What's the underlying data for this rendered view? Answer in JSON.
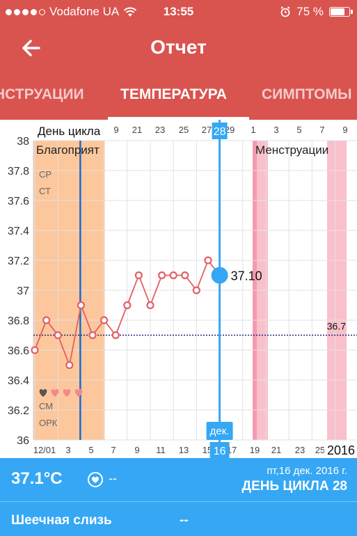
{
  "status_bar": {
    "carrier": "Vodafone UA",
    "time": "13:55",
    "battery": "75 %",
    "battery_level": 0.75
  },
  "header": {
    "title": "Отчет",
    "back_icon": "arrow-left-icon"
  },
  "tabs": [
    {
      "label": "НСТРУАЦИИ",
      "active": false
    },
    {
      "label": "ТЕМПЕРАТУРА",
      "active": true
    },
    {
      "label": "СИМПТОМЫ",
      "active": false
    }
  ],
  "chart_data": {
    "type": "line",
    "title": "",
    "x_axis_top_label": "День цикла",
    "top_ticks": [
      "9",
      "21",
      "23",
      "25",
      "27",
      "28",
      "29",
      "1",
      "3",
      "5",
      "7",
      "9"
    ],
    "selected_cycle_day": "28",
    "bottom_ticks": [
      "12/01",
      "3",
      "5",
      "7",
      "9",
      "11",
      "13",
      "15",
      "16",
      "17",
      "19",
      "21",
      "23",
      "25"
    ],
    "selected_date_badge": {
      "month": "дек.",
      "day": "16"
    },
    "year_label": "2016",
    "y_ticks": [
      "38",
      "37.8",
      "37.6",
      "37.4",
      "37.2",
      "37",
      "36.8",
      "36.6",
      "36.4",
      "36.2",
      "36"
    ],
    "ylim": [
      36,
      38
    ],
    "x": [
      "1",
      "2",
      "3",
      "4",
      "5",
      "6",
      "7",
      "8",
      "9",
      "10",
      "11",
      "12",
      "13",
      "14",
      "15",
      "16"
    ],
    "series": [
      {
        "values": [
          36.6,
          36.8,
          36.7,
          36.5,
          36.9,
          36.7,
          36.8,
          36.7,
          36.9,
          37.1,
          36.9,
          37.1,
          37.1,
          37.1,
          37.0,
          37.2
        ]
      }
    ],
    "selected_point": {
      "x": "17",
      "y": 37.1,
      "label": "37.10"
    },
    "coverline": {
      "value": 36.7,
      "label": "36.7"
    },
    "bands": [
      {
        "label": "Благоприят",
        "from": "1",
        "to": "7",
        "color": "#fcc79c"
      },
      {
        "label": "Менструации",
        "from": "20",
        "to": "29",
        "color": "#f8b9c5"
      }
    ],
    "ovulation_line": {
      "x": "5"
    },
    "left_markers": [
      "СР",
      "СТ",
      "СМ",
      "ОРК"
    ],
    "hearts": 4,
    "grid": true,
    "colors": {
      "line": "#e35f66",
      "selected": "#35a7f4",
      "coverline": "#1a237e",
      "ovulation": "#2166c8"
    }
  },
  "info_bar": {
    "temperature": "37.1°C",
    "heart_icon": "heart-circle-icon",
    "sex_value": "--",
    "date": "пт,16 дек. 2016 г.",
    "cycle_day": "ДЕНЬ ЦИКЛА 28"
  },
  "mucus": {
    "label": "Шеечная слизь",
    "value": "--"
  },
  "colors": {
    "header": "#d9534f",
    "accent": "#35a7f4"
  }
}
